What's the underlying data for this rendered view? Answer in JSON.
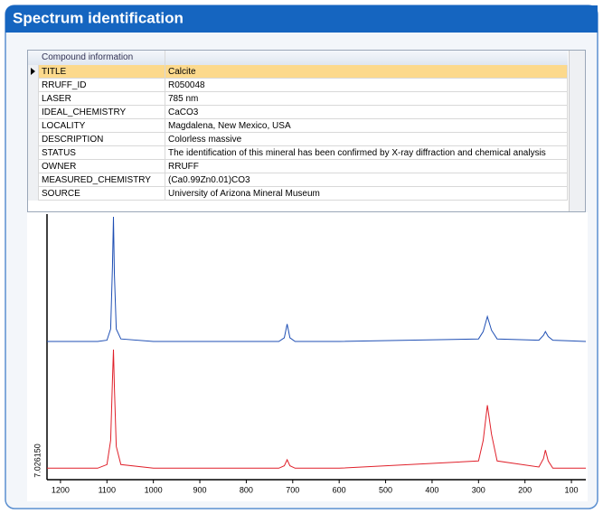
{
  "header": {
    "title": "Spectrum identification"
  },
  "table": {
    "header": "Compound information",
    "selected_row": 0,
    "rows": [
      [
        "TITLE",
        "Calcite"
      ],
      [
        "RRUFF_ID",
        "R050048"
      ],
      [
        "LASER",
        "785 nm"
      ],
      [
        "IDEAL_CHEMISTRY",
        "CaCO3"
      ],
      [
        "LOCALITY",
        "Magdalena, New Mexico, USA"
      ],
      [
        "DESCRIPTION",
        "Colorless massive"
      ],
      [
        "STATUS",
        "The identification of this mineral has been confirmed by X-ray diffraction and chemical analysis"
      ],
      [
        "OWNER",
        "RRUFF"
      ],
      [
        "MEASURED_CHEMISTRY",
        "(Ca0.99Zn0.01)CO3"
      ],
      [
        "SOURCE",
        "University of Arizona Mineral Museum"
      ]
    ]
  },
  "chart_data": {
    "type": "line",
    "ylabel": "7.026150",
    "x": [
      1229,
      1120,
      1100,
      1092,
      1088,
      1086,
      1084,
      1080,
      1070,
      1000,
      730,
      718,
      712,
      706,
      695,
      600,
      300,
      290,
      281,
      272,
      260,
      170,
      160,
      156,
      150,
      140,
      69
    ],
    "xlim": [
      1229,
      69
    ],
    "xticks": [
      1200,
      1100,
      1000,
      900,
      800,
      700,
      600,
      500,
      400,
      300,
      200,
      100
    ],
    "ylim": [
      0,
      100
    ],
    "series": [
      {
        "color": "#1f4fb4",
        "values": [
          0,
          0,
          1,
          10,
          60,
          100,
          55,
          10,
          2,
          0,
          0,
          3,
          14,
          3,
          0,
          0,
          2,
          8,
          20,
          9,
          2,
          1,
          5,
          8,
          4,
          1,
          0
        ]
      },
      {
        "color": "#e0202a",
        "values": [
          2,
          2,
          5,
          25,
          75,
          100,
          70,
          20,
          5,
          2,
          2,
          4,
          9,
          4,
          2,
          2,
          8,
          25,
          54,
          30,
          8,
          3,
          10,
          17,
          8,
          2,
          2
        ]
      }
    ]
  }
}
